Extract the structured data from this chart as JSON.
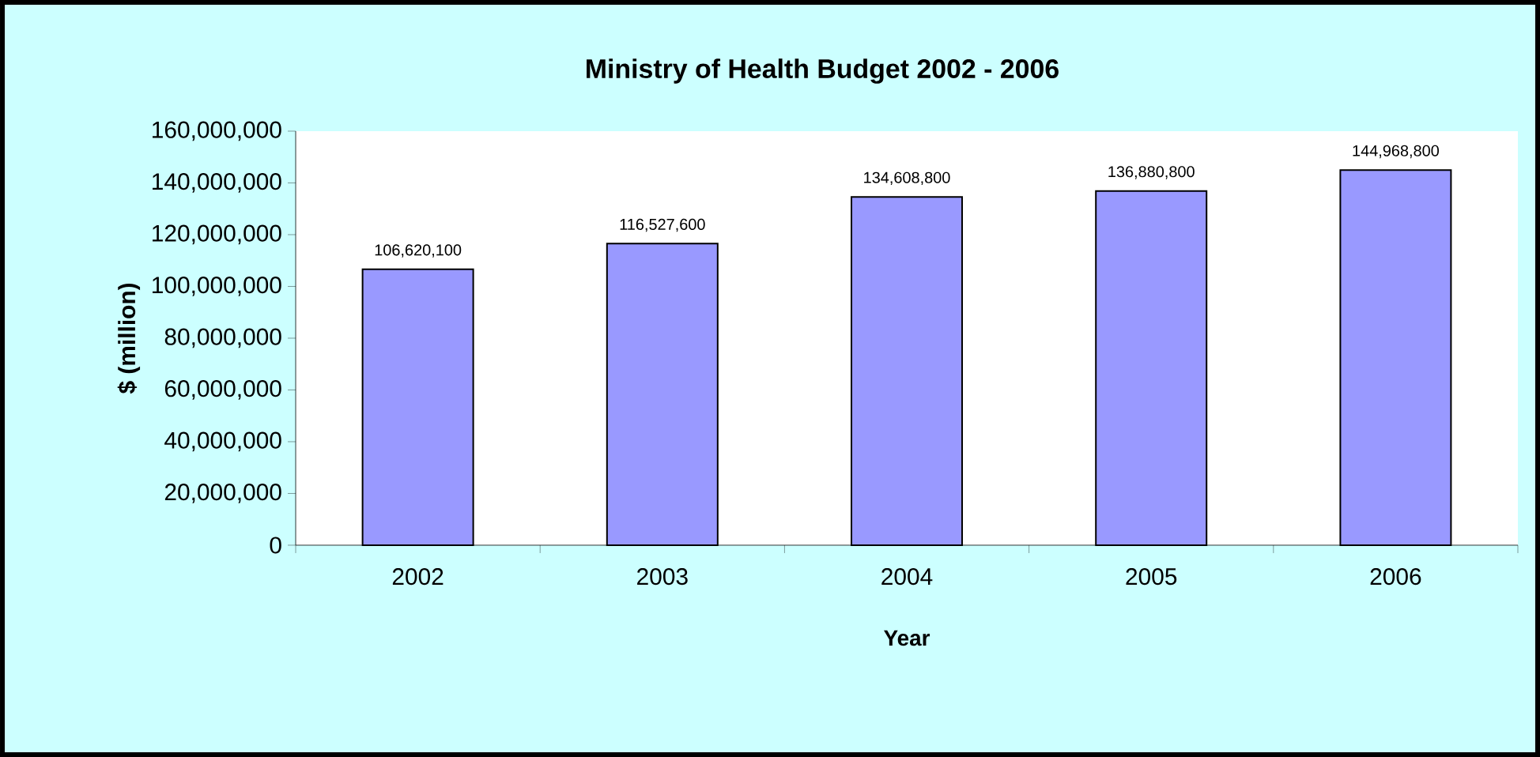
{
  "chart_data": {
    "type": "bar",
    "title": "Ministry of Health Budget 2002 - 2006",
    "xlabel": "Year",
    "ylabel": "$ (million)",
    "categories": [
      "2002",
      "2003",
      "2004",
      "2005",
      "2006"
    ],
    "values": [
      106620100,
      116527600,
      134608800,
      136880800,
      144968800
    ],
    "value_labels": [
      "106,620,100",
      "116,527,600",
      "134,608,800",
      "136,880,800",
      "144,968,800"
    ],
    "color": "#9999ff",
    "grid": false,
    "ylim": [
      0,
      160000000
    ],
    "yticks": [
      {
        "value": 0,
        "label": "0"
      },
      {
        "value": 20000000,
        "label": "20,000,000"
      },
      {
        "value": 40000000,
        "label": "40,000,000"
      },
      {
        "value": 60000000,
        "label": "60,000,000"
      },
      {
        "value": 80000000,
        "label": "80,000,000"
      },
      {
        "value": 100000000,
        "label": "100,000,000"
      },
      {
        "value": 120000000,
        "label": "120,000,000"
      },
      {
        "value": 140000000,
        "label": "140,000,000"
      },
      {
        "value": 160000000,
        "label": "160,000,000"
      }
    ]
  }
}
